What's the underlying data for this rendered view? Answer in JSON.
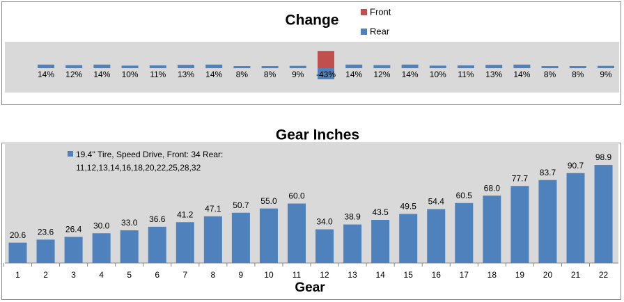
{
  "chart_data": [
    {
      "type": "bar",
      "title": "Change",
      "categories": [
        null,
        null,
        null,
        null,
        null,
        null,
        null,
        null,
        null,
        null,
        null,
        null,
        null,
        null,
        null,
        null,
        null,
        null,
        null,
        null,
        null
      ],
      "series": [
        {
          "name": "Front",
          "color": "#c0504d",
          "values": [
            null,
            null,
            null,
            null,
            null,
            null,
            null,
            null,
            null,
            null,
            67,
            null,
            null,
            null,
            null,
            null,
            null,
            null,
            null,
            null,
            null
          ]
        },
        {
          "name": "Rear",
          "color": "#4f81bd",
          "values": [
            14,
            12,
            14,
            10,
            11,
            13,
            14,
            8,
            8,
            9,
            -43,
            14,
            12,
            14,
            10,
            11,
            13,
            14,
            8,
            8,
            9
          ],
          "value_labels": [
            "14%",
            "12%",
            "14%",
            "10%",
            "11%",
            "13%",
            "14%",
            "8%",
            "8%",
            "9%",
            "-43%",
            "14%",
            "12%",
            "14%",
            "10%",
            "11%",
            "13%",
            "14%",
            "8%",
            "8%",
            "9%"
          ]
        }
      ]
    },
    {
      "type": "bar",
      "title": "Gear Inches",
      "xlabel": "Gear",
      "categories": [
        "1",
        "2",
        "3",
        "4",
        "5",
        "6",
        "7",
        "8",
        "9",
        "10",
        "11",
        "12",
        "13",
        "14",
        "15",
        "16",
        "17",
        "18",
        "19",
        "20",
        "21",
        "22"
      ],
      "series": [
        {
          "name": "19.4'' Tire, Speed Drive,  Front: 34 Rear: 11,12,13,14,16,18,20,22,25,28,32",
          "color": "#4f81bd",
          "values": [
            20.6,
            23.6,
            26.4,
            30.0,
            33.0,
            36.6,
            41.2,
            47.1,
            50.7,
            55.0,
            60.0,
            34.0,
            38.9,
            43.5,
            49.5,
            54.4,
            60.5,
            68.0,
            77.7,
            83.7,
            90.7,
            98.9
          ],
          "value_labels": [
            "20.6",
            "23.6",
            "26.4",
            "30.0",
            "33.0",
            "36.6",
            "41.2",
            "47.1",
            "50.7",
            "55.0",
            "60.0",
            "34.0",
            "38.9",
            "43.5",
            "49.5",
            "54.4",
            "60.5",
            "68.0",
            "77.7",
            "83.7",
            "90.7",
            "98.9"
          ]
        }
      ]
    }
  ]
}
